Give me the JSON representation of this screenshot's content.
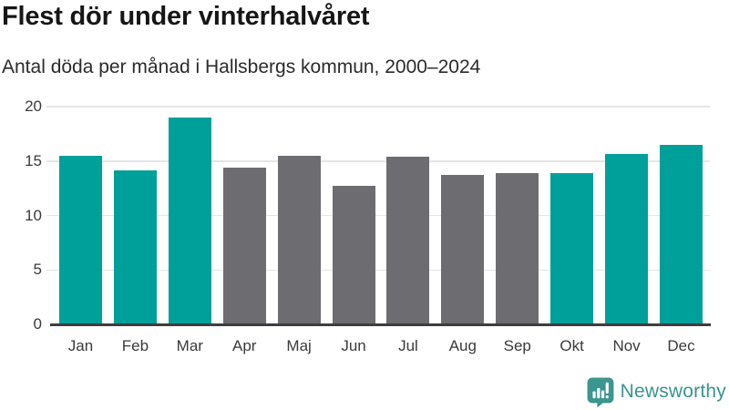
{
  "chart_data": {
    "type": "bar",
    "title": "Flest dör under vinterhalvåret",
    "subtitle": "Antal döda per månad i Hallsbergs kommun, 2000–2024",
    "categories": [
      "Jan",
      "Feb",
      "Mar",
      "Apr",
      "Maj",
      "Jun",
      "Jul",
      "Aug",
      "Sep",
      "Okt",
      "Nov",
      "Dec"
    ],
    "values": [
      15.4,
      14.1,
      18.9,
      14.3,
      15.4,
      12.6,
      15.3,
      13.6,
      13.8,
      13.8,
      15.6,
      16.4
    ],
    "point_colors": [
      "#00a09a",
      "#00a09a",
      "#00a09a",
      "#6d6c71",
      "#6d6c71",
      "#6d6c71",
      "#6d6c71",
      "#6d6c71",
      "#6d6c71",
      "#00a09a",
      "#00a09a",
      "#00a09a"
    ],
    "highlight_meaning": "teal = winter half-year months (Okt-Mar), gray = summer half-year months (Apr-Sep)",
    "xlabel": "",
    "ylabel": "",
    "y_ticks": [
      0,
      5,
      10,
      15,
      20
    ],
    "ylim": [
      0,
      20
    ],
    "grid": "horizontal",
    "legend": "none"
  },
  "logo": {
    "text": "Newsworthy",
    "icon": "newsworthy-speech-bubble-bar-chart-icon",
    "color": "#3a948e",
    "icon_color": "#3b968f"
  },
  "colors": {
    "winter_bar": "#00a09a",
    "summer_bar": "#6d6c71",
    "gridline": "#e5e5e5",
    "axis_line": "#3e3e3e",
    "title_text": "#161616",
    "subtitle_text": "#2b2b2b",
    "tick_label": "#3a3a3a",
    "background": "#ffffff"
  }
}
